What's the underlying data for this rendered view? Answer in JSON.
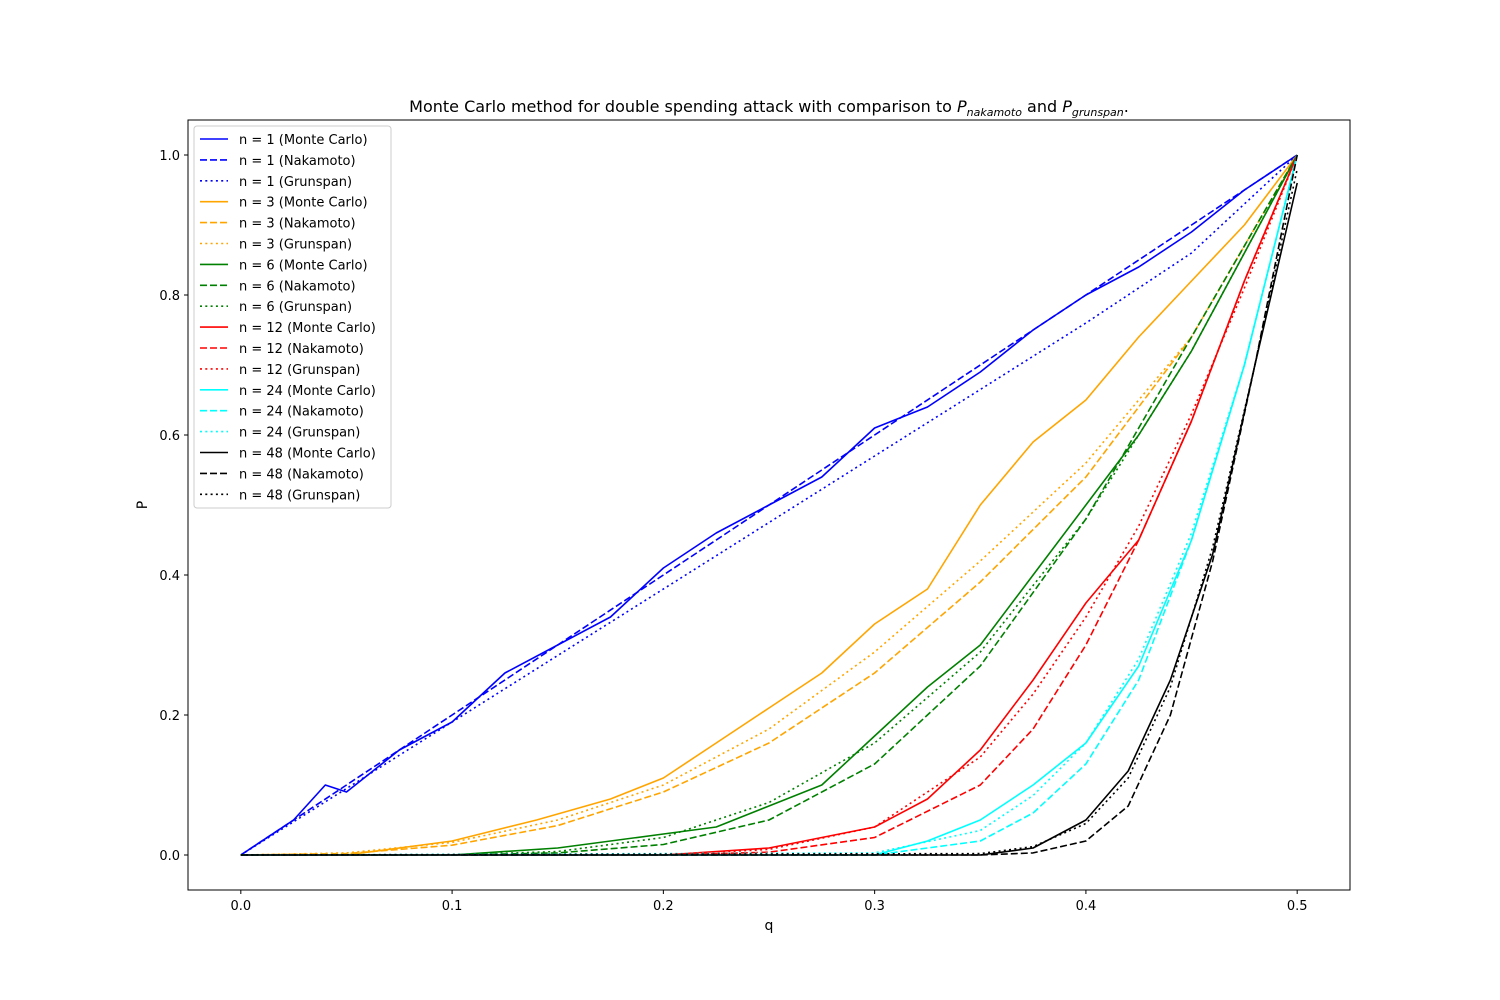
{
  "chart_data": {
    "type": "line",
    "title": {
      "prefix": "Monte Carlo method for double spending attack with comparison to ",
      "sym1": "P",
      "sub1": "nakamoto",
      "mid": " and ",
      "sym2": "P",
      "sub2": "grunspan",
      "suffix": "."
    },
    "xlabel": "q",
    "ylabel": "P",
    "xlim": [
      -0.025,
      0.525
    ],
    "ylim": [
      -0.05,
      1.05
    ],
    "xticks": [
      0.0,
      0.1,
      0.2,
      0.3,
      0.4,
      0.5
    ],
    "xtick_labels": [
      "0.0",
      "0.1",
      "0.2",
      "0.3",
      "0.4",
      "0.5"
    ],
    "yticks": [
      0.0,
      0.2,
      0.4,
      0.6,
      0.8,
      1.0
    ],
    "ytick_labels": [
      "0.0",
      "0.2",
      "0.4",
      "0.6",
      "0.8",
      "1.0"
    ],
    "grid": false,
    "legend_position": "upper-left",
    "series": [
      {
        "name": "n = 1 (Monte Carlo)",
        "color": "#0000ff",
        "style": "solid",
        "x": [
          0.0,
          0.025,
          0.04,
          0.05,
          0.075,
          0.1,
          0.125,
          0.15,
          0.175,
          0.2,
          0.225,
          0.25,
          0.275,
          0.3,
          0.325,
          0.35,
          0.375,
          0.4,
          0.425,
          0.45,
          0.475,
          0.5
        ],
        "y": [
          0.0,
          0.05,
          0.1,
          0.09,
          0.15,
          0.19,
          0.26,
          0.3,
          0.34,
          0.41,
          0.46,
          0.5,
          0.54,
          0.61,
          0.64,
          0.69,
          0.75,
          0.8,
          0.84,
          0.89,
          0.95,
          1.0
        ]
      },
      {
        "name": "n = 1 (Nakamoto)",
        "color": "#0000ff",
        "style": "dashed",
        "x": [
          0.0,
          0.05,
          0.1,
          0.15,
          0.2,
          0.25,
          0.3,
          0.35,
          0.4,
          0.45,
          0.5
        ],
        "y": [
          0.0,
          0.1,
          0.2,
          0.3,
          0.4,
          0.5,
          0.6,
          0.7,
          0.8,
          0.9,
          1.0
        ]
      },
      {
        "name": "n = 1 (Grunspan)",
        "color": "#0000ff",
        "style": "dotted",
        "x": [
          0.0,
          0.05,
          0.1,
          0.15,
          0.2,
          0.25,
          0.3,
          0.35,
          0.4,
          0.45,
          0.5
        ],
        "y": [
          0.0,
          0.095,
          0.19,
          0.285,
          0.38,
          0.475,
          0.57,
          0.665,
          0.76,
          0.86,
          1.0
        ]
      },
      {
        "name": "n = 3 (Monte Carlo)",
        "color": "#ffa500",
        "style": "solid",
        "x": [
          0.0,
          0.05,
          0.1,
          0.14,
          0.175,
          0.2,
          0.225,
          0.25,
          0.275,
          0.3,
          0.325,
          0.35,
          0.375,
          0.4,
          0.425,
          0.45,
          0.475,
          0.5
        ],
        "y": [
          0.0,
          0.0,
          0.02,
          0.05,
          0.08,
          0.11,
          0.16,
          0.21,
          0.26,
          0.33,
          0.38,
          0.5,
          0.59,
          0.65,
          0.74,
          0.82,
          0.9,
          1.0
        ]
      },
      {
        "name": "n = 3 (Nakamoto)",
        "color": "#ffa500",
        "style": "dashed",
        "x": [
          0.0,
          0.05,
          0.1,
          0.15,
          0.2,
          0.25,
          0.3,
          0.35,
          0.4,
          0.45,
          0.5
        ],
        "y": [
          0.0,
          0.002,
          0.014,
          0.042,
          0.09,
          0.16,
          0.26,
          0.39,
          0.54,
          0.74,
          1.0
        ]
      },
      {
        "name": "n = 3 (Grunspan)",
        "color": "#ffa500",
        "style": "dotted",
        "x": [
          0.0,
          0.05,
          0.1,
          0.15,
          0.2,
          0.25,
          0.3,
          0.35,
          0.4,
          0.45,
          0.5
        ],
        "y": [
          0.0,
          0.003,
          0.018,
          0.05,
          0.1,
          0.18,
          0.29,
          0.42,
          0.56,
          0.74,
          1.0
        ]
      },
      {
        "name": "n = 6 (Monte Carlo)",
        "color": "#008000",
        "style": "solid",
        "x": [
          0.0,
          0.1,
          0.15,
          0.2,
          0.225,
          0.25,
          0.275,
          0.3,
          0.325,
          0.35,
          0.375,
          0.4,
          0.425,
          0.45,
          0.475,
          0.5
        ],
        "y": [
          0.0,
          0.0,
          0.01,
          0.03,
          0.04,
          0.07,
          0.1,
          0.17,
          0.24,
          0.3,
          0.4,
          0.5,
          0.6,
          0.72,
          0.86,
          1.0
        ]
      },
      {
        "name": "n = 6 (Nakamoto)",
        "color": "#008000",
        "style": "dashed",
        "x": [
          0.0,
          0.1,
          0.15,
          0.2,
          0.25,
          0.3,
          0.35,
          0.4,
          0.45,
          0.5
        ],
        "y": [
          0.0,
          0.0,
          0.003,
          0.015,
          0.05,
          0.13,
          0.27,
          0.48,
          0.74,
          1.0
        ]
      },
      {
        "name": "n = 6 (Grunspan)",
        "color": "#008000",
        "style": "dotted",
        "x": [
          0.0,
          0.1,
          0.15,
          0.2,
          0.25,
          0.3,
          0.35,
          0.4,
          0.45,
          0.5
        ],
        "y": [
          0.0,
          0.0,
          0.005,
          0.025,
          0.075,
          0.16,
          0.29,
          0.48,
          0.72,
          1.0
        ]
      },
      {
        "name": "n = 12 (Monte Carlo)",
        "color": "#ff0000",
        "style": "solid",
        "x": [
          0.0,
          0.2,
          0.25,
          0.3,
          0.325,
          0.35,
          0.375,
          0.4,
          0.425,
          0.45,
          0.475,
          0.5
        ],
        "y": [
          0.0,
          0.0,
          0.01,
          0.04,
          0.08,
          0.15,
          0.25,
          0.36,
          0.45,
          0.62,
          0.82,
          1.0
        ]
      },
      {
        "name": "n = 12 (Nakamoto)",
        "color": "#ff0000",
        "style": "dashed",
        "x": [
          0.0,
          0.2,
          0.25,
          0.3,
          0.35,
          0.375,
          0.4,
          0.425,
          0.45,
          0.475,
          0.5
        ],
        "y": [
          0.0,
          0.0,
          0.004,
          0.025,
          0.1,
          0.18,
          0.3,
          0.45,
          0.62,
          0.82,
          1.0
        ]
      },
      {
        "name": "n = 12 (Grunspan)",
        "color": "#ff0000",
        "style": "dotted",
        "x": [
          0.0,
          0.2,
          0.25,
          0.3,
          0.35,
          0.375,
          0.4,
          0.425,
          0.45,
          0.475,
          0.5
        ],
        "y": [
          0.0,
          0.0,
          0.008,
          0.04,
          0.14,
          0.23,
          0.34,
          0.47,
          0.63,
          0.81,
          1.0
        ]
      },
      {
        "name": "n = 24 (Monte Carlo)",
        "color": "#00ffff",
        "style": "solid",
        "x": [
          0.0,
          0.3,
          0.325,
          0.35,
          0.375,
          0.4,
          0.425,
          0.45,
          0.475,
          0.5
        ],
        "y": [
          0.0,
          0.0,
          0.02,
          0.05,
          0.1,
          0.16,
          0.27,
          0.45,
          0.7,
          1.0
        ]
      },
      {
        "name": "n = 24 (Nakamoto)",
        "color": "#00ffff",
        "style": "dashed",
        "x": [
          0.0,
          0.3,
          0.35,
          0.375,
          0.4,
          0.425,
          0.45,
          0.475,
          0.5
        ],
        "y": [
          0.0,
          0.0,
          0.02,
          0.06,
          0.13,
          0.25,
          0.45,
          0.7,
          1.0
        ]
      },
      {
        "name": "n = 24 (Grunspan)",
        "color": "#00ffff",
        "style": "dotted",
        "x": [
          0.0,
          0.3,
          0.35,
          0.375,
          0.4,
          0.425,
          0.45,
          0.475,
          0.5
        ],
        "y": [
          0.0,
          0.003,
          0.035,
          0.085,
          0.16,
          0.28,
          0.46,
          0.7,
          1.0
        ]
      },
      {
        "name": "n = 48 (Monte Carlo)",
        "color": "#000000",
        "style": "solid",
        "x": [
          0.0,
          0.35,
          0.375,
          0.4,
          0.42,
          0.44,
          0.46,
          0.48,
          0.5
        ],
        "y": [
          0.0,
          0.0,
          0.01,
          0.05,
          0.12,
          0.25,
          0.43,
          0.7,
          0.96
        ]
      },
      {
        "name": "n = 48 (Nakamoto)",
        "color": "#000000",
        "style": "dashed",
        "x": [
          0.0,
          0.35,
          0.375,
          0.4,
          0.42,
          0.44,
          0.46,
          0.48,
          0.5
        ],
        "y": [
          0.0,
          0.0,
          0.003,
          0.02,
          0.07,
          0.2,
          0.42,
          0.7,
          1.0
        ]
      },
      {
        "name": "n = 48 (Grunspan)",
        "color": "#000000",
        "style": "dotted",
        "x": [
          0.0,
          0.35,
          0.375,
          0.4,
          0.42,
          0.44,
          0.46,
          0.48,
          0.5
        ],
        "y": [
          0.0,
          0.002,
          0.012,
          0.045,
          0.11,
          0.24,
          0.44,
          0.7,
          0.98
        ]
      }
    ]
  }
}
